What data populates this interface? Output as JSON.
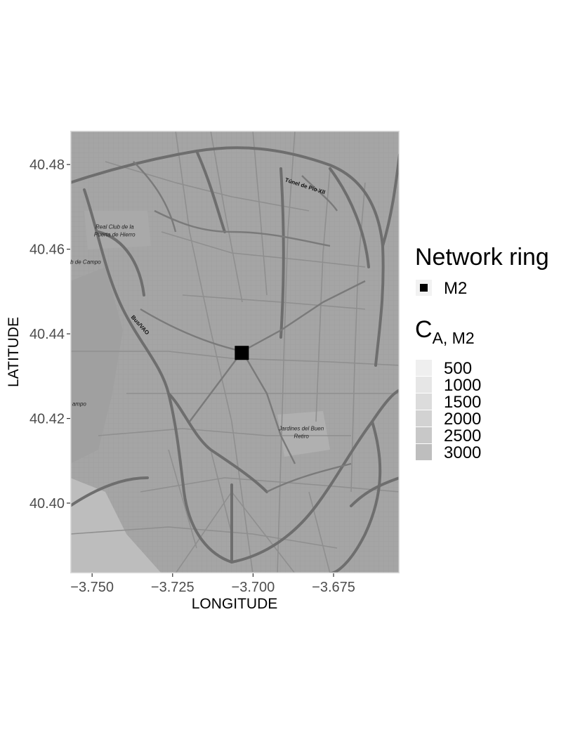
{
  "chart_data": {
    "type": "scatter",
    "title": "",
    "xlabel": "LONGITUDE",
    "ylabel": "LATITUDE",
    "xlim": [
      -3.7568,
      -3.6545
    ],
    "ylim": [
      40.3834,
      40.488
    ],
    "x_ticks": [
      -3.75,
      -3.725,
      -3.7,
      -3.675
    ],
    "x_tick_labels": [
      "−3.750",
      "−3.725",
      "−3.700",
      "−3.675"
    ],
    "y_ticks": [
      40.4,
      40.42,
      40.44,
      40.46,
      40.48
    ],
    "y_tick_labels": [
      "40.40",
      "40.42",
      "40.44",
      "40.46",
      "40.48"
    ],
    "grid": false,
    "basemap": "grayscale street map (Madrid)",
    "map_labels": [
      {
        "text": "Túnel de Pío XII",
        "lon": -3.684,
        "lat": 40.4745,
        "style": "bold",
        "rotate": 18
      },
      {
        "text": "Real Club de la",
        "lon": -3.743,
        "lat": 40.4648,
        "style": "italic",
        "rotate": 0
      },
      {
        "text": "Puerta de Hierro",
        "lon": -3.743,
        "lat": 40.463,
        "style": "italic",
        "rotate": 0
      },
      {
        "text": "ub de Campo",
        "lon": -3.7525,
        "lat": 40.4565,
        "style": "italic",
        "rotate": 0
      },
      {
        "text": "Bus/VAO",
        "lon": -3.7355,
        "lat": 40.4418,
        "style": "bold",
        "rotate": 48
      },
      {
        "text": "ampo",
        "lon": -3.754,
        "lat": 40.423,
        "style": "italic",
        "rotate": 0
      },
      {
        "text": "Jardines del Buen",
        "lon": -3.685,
        "lat": 40.4172,
        "style": "italic",
        "rotate": 0
      },
      {
        "text": "Retiro",
        "lon": -3.685,
        "lat": 40.4154,
        "style": "italic",
        "rotate": 0
      }
    ],
    "series": [
      {
        "name": "M2",
        "points": [
          {
            "x": -3.7035,
            "y": 40.4355
          }
        ],
        "color": "#000000",
        "shape": "square"
      }
    ],
    "legends": [
      {
        "title": "Network ring",
        "items": [
          {
            "label": "M2",
            "color": "#000000",
            "shape": "square"
          }
        ]
      },
      {
        "title_main": "C",
        "title_sub": "A, M2",
        "items": [
          {
            "label": "500",
            "color": "#efefef"
          },
          {
            "label": "1000",
            "color": "#e6e6e6"
          },
          {
            "label": "1500",
            "color": "#dcdcdc"
          },
          {
            "label": "2000",
            "color": "#d2d2d2"
          },
          {
            "label": "2500",
            "color": "#c8c8c8"
          },
          {
            "label": "3000",
            "color": "#bebebe"
          }
        ]
      }
    ],
    "legend_placement": "right"
  },
  "colors": {
    "map_background": "#a7a7a7",
    "major_road": "#6e6e6e",
    "street": "#9a9a9a",
    "park": "#b9b9b9"
  }
}
